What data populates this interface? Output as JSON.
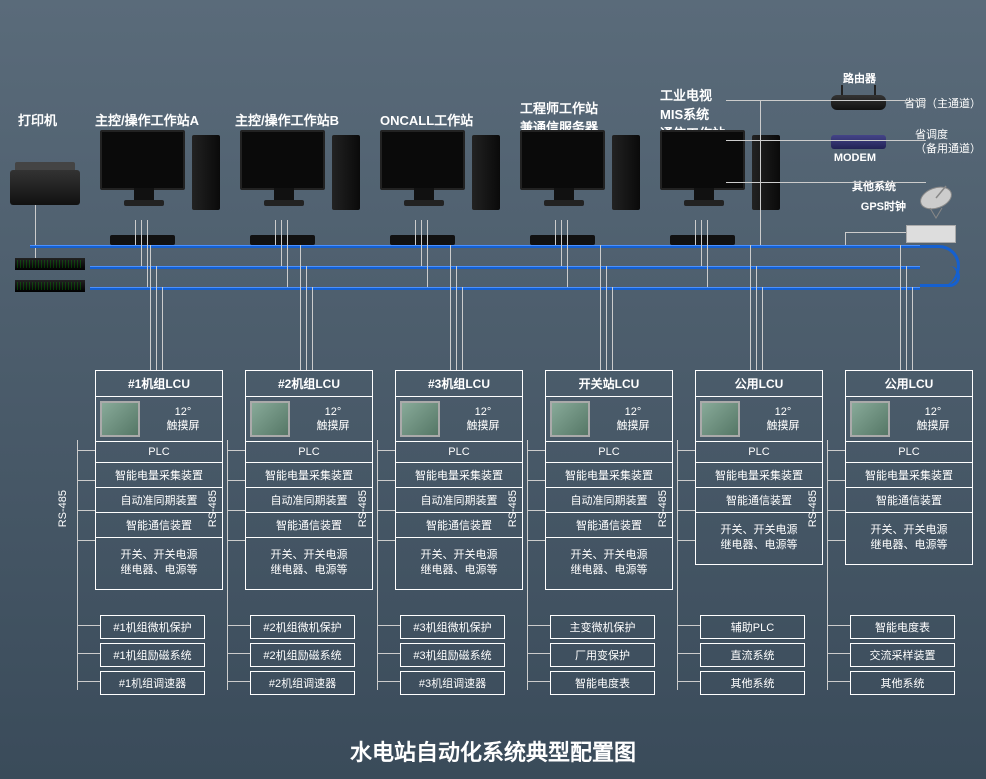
{
  "title": "水电站自动化系统典型配置图",
  "background_gradient": [
    "#5a6b7a",
    "#4a5b6a",
    "#3a4b5a"
  ],
  "network_line_color": "#1560d0",
  "top_labels": {
    "printer": "打印机",
    "wsA": "主控/操作工作站A",
    "wsB": "主控/操作工作站B",
    "oncall": "ONCALL工作站",
    "engineer_l1": "工程师工作站",
    "engineer_l2": "兼通信服务器",
    "tv_l1": "工业电视",
    "tv_l2": "MIS系统",
    "tv_l3": "通信工作站"
  },
  "right_devices": {
    "router": "路由器",
    "router_note": "省调（主通道）",
    "modem": "MODEM",
    "modem_note_l1": "省调度",
    "modem_note_l2": "（备用通道）",
    "other": "其他系统",
    "gps": "GPS时钟"
  },
  "rs485_label": "RS-485",
  "touchscreen_l1": "12°",
  "touchscreen_l2": "触摸屏",
  "lcu_common": {
    "plc": "PLC",
    "smart_power": "智能电量采集装置",
    "auto_sync": "自动准同期装置",
    "smart_comm": "智能通信装置",
    "switches_l1": "开关、开关电源",
    "switches_l2": "继电器、电源等"
  },
  "lcus": [
    {
      "title": "#1机组LCU",
      "has_sync": true,
      "subs": [
        "#1机组微机保护",
        "#1机组励磁系统",
        "#1机组调速器"
      ]
    },
    {
      "title": "#2机组LCU",
      "has_sync": true,
      "subs": [
        "#2机组微机保护",
        "#2机组励磁系统",
        "#2机组调速器"
      ]
    },
    {
      "title": "#3机组LCU",
      "has_sync": true,
      "subs": [
        "#3机组微机保护",
        "#3机组励磁系统",
        "#3机组调速器"
      ]
    },
    {
      "title": "开关站LCU",
      "has_sync": true,
      "subs": [
        "主变微机保护",
        "厂用变保护",
        "智能电度表"
      ]
    },
    {
      "title": "公用LCU",
      "has_sync": false,
      "subs": [
        "辅助PLC",
        "直流系统",
        "其他系统"
      ]
    },
    {
      "title": "公用LCU",
      "has_sync": false,
      "subs": [
        "智能电度表",
        "交流采样装置",
        "其他系统"
      ]
    }
  ],
  "lcu_x_positions": [
    95,
    245,
    395,
    545,
    695,
    845
  ],
  "ws_x_positions": [
    100,
    240,
    380,
    520,
    660
  ],
  "net_line_y": [
    245,
    266,
    287
  ],
  "net_right_edge": 920
}
